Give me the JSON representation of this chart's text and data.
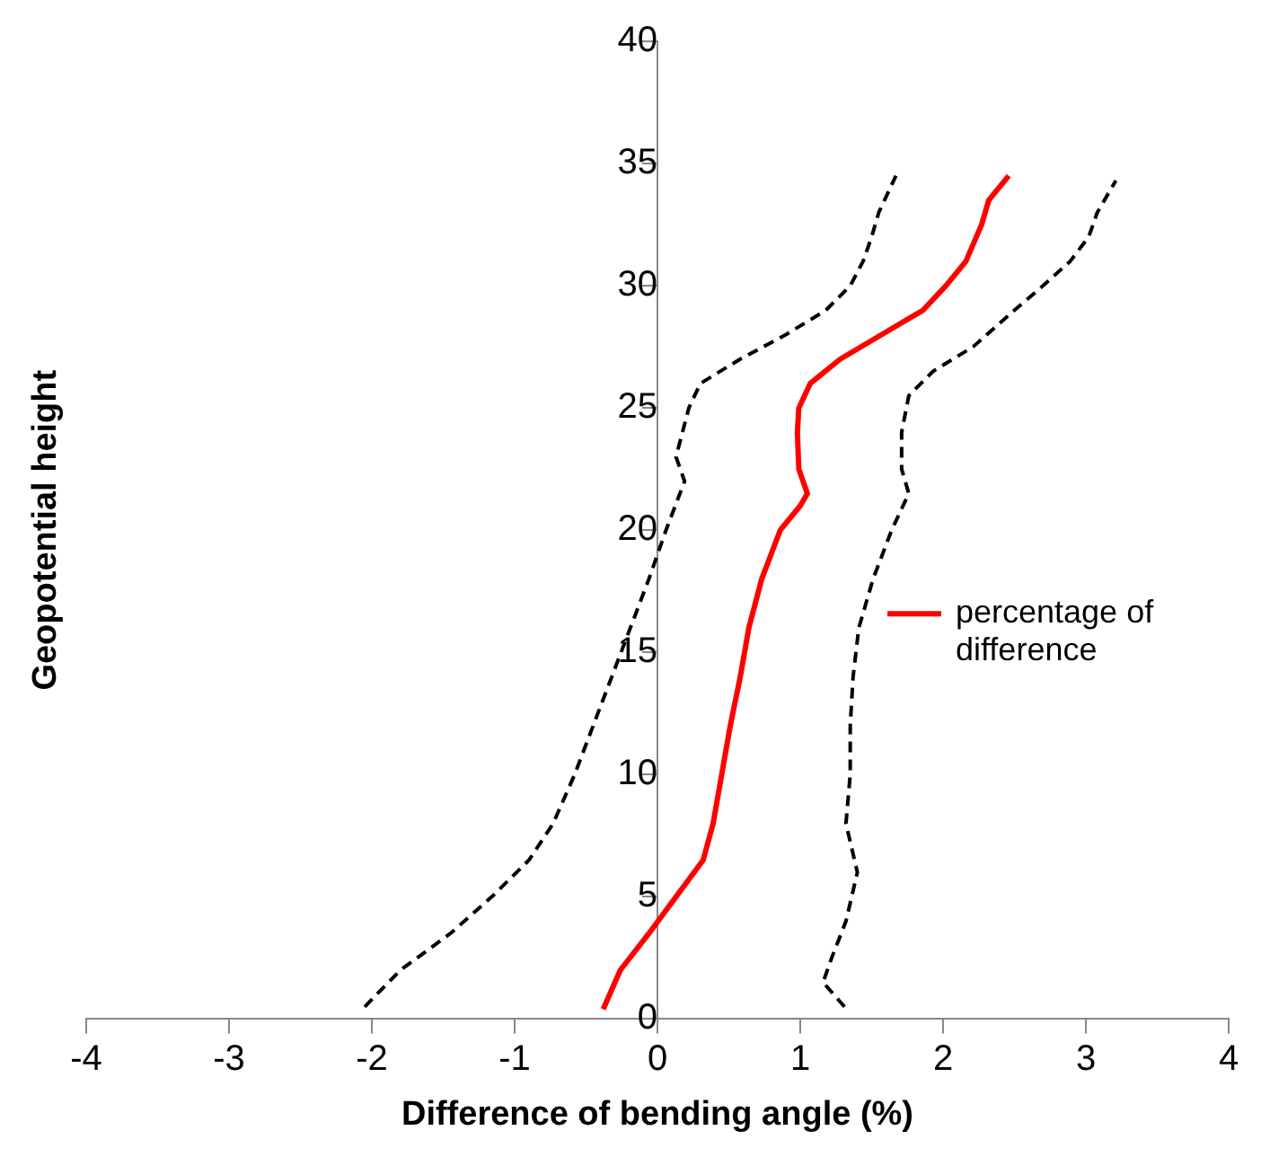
{
  "chart_data": {
    "type": "line",
    "xlabel": "Difference of bending angle (%)",
    "ylabel": "Geopotential height",
    "xlim": [
      -4,
      4
    ],
    "xticks": [
      -4,
      -3,
      -2,
      -1,
      0,
      1,
      2,
      3,
      4
    ],
    "ylim": [
      0,
      40
    ],
    "yticks": [
      0,
      5,
      10,
      15,
      20,
      25,
      30,
      35,
      40
    ],
    "grid": false,
    "legend": "right",
    "marker": "none",
    "series": [
      {
        "name": "percentage of difference",
        "color": "#ff0000",
        "line_style": "solid",
        "x": [
          -0.38,
          -0.26,
          -0.06,
          0.13,
          0.32,
          0.39,
          0.45,
          0.51,
          0.58,
          0.64,
          0.73,
          0.86,
          1.0,
          1.05,
          0.99,
          0.98,
          0.99,
          1.07,
          1.28,
          1.57,
          1.86,
          2.02,
          2.16,
          2.27,
          2.32,
          2.46
        ],
        "values": [
          0.4,
          2,
          3.5,
          5,
          6.5,
          8,
          10,
          12,
          14,
          16,
          18,
          20,
          21,
          21.5,
          22.5,
          24,
          25,
          26,
          27,
          28,
          29,
          30,
          31,
          32.5,
          33.5,
          34.5
        ]
      },
      {
        "color": "#000000",
        "line_style": "dashed",
        "x": [
          -2.05,
          -1.8,
          -1.45,
          -1.16,
          -0.9,
          -0.73,
          -0.58,
          -0.45,
          -0.32,
          -0.19,
          -0.06,
          0.06,
          0.19,
          0.13,
          0.22,
          0.3,
          0.58,
          0.9,
          1.18,
          1.35,
          1.44,
          1.5,
          1.55,
          1.67
        ],
        "values": [
          0.5,
          2,
          3.5,
          5,
          6.5,
          8,
          10,
          12,
          14,
          16,
          18,
          20,
          22,
          23,
          25,
          26,
          27,
          28,
          29,
          30,
          31,
          32,
          33,
          34.5
        ]
      },
      {
        "color": "#000000",
        "line_style": "dashed",
        "x": [
          1.31,
          1.16,
          1.22,
          1.32,
          1.4,
          1.32,
          1.35,
          1.35,
          1.37,
          1.41,
          1.51,
          1.64,
          1.76,
          1.71,
          1.71,
          1.76,
          1.93,
          2.21,
          2.5,
          2.7,
          2.89,
          3.02,
          3.08,
          3.21
        ],
        "values": [
          0.5,
          1.5,
          2.5,
          4,
          6,
          8,
          10,
          12,
          14,
          16,
          18,
          20,
          21.5,
          22.5,
          24,
          25.5,
          26.5,
          27.5,
          29,
          30,
          31,
          32,
          33,
          34.3
        ]
      }
    ]
  }
}
